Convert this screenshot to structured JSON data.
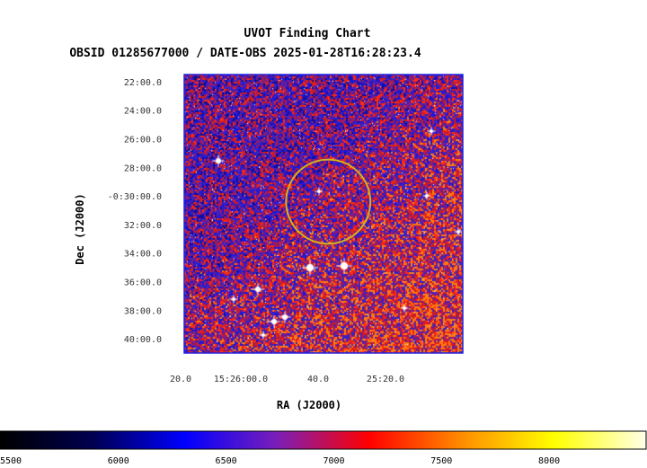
{
  "chart_data": {
    "type": "heatmap",
    "title": "UVOT Finding Chart",
    "subtitle": "OBSID 01285677000 / DATE-OBS 2025-01-28T16:28:23.4",
    "xlabel": "RA (J2000)",
    "ylabel": "Dec (J2000)",
    "grid": false,
    "xtick_labels": [
      "20.0",
      "15:26:00.0",
      "40.0",
      "25:20.0"
    ],
    "ytick_labels": [
      "22:00.0",
      "24:00.0",
      "26:00.0",
      "28:00.0",
      "-0:30:00.0",
      "32:00.0",
      "34:00.0",
      "36:00.0",
      "38:00.0",
      "40:00.0"
    ],
    "dec_ticks_arcmin": [
      -22,
      -24,
      -26,
      -28,
      -30,
      -32,
      -34,
      -36,
      -38,
      -40
    ],
    "ra_ticks_sec": [
      20,
      0,
      -20,
      -40
    ],
    "dec_range_arcmin": [
      -21.5,
      -41.0
    ],
    "ra_range_sec": [
      27,
      -32
    ],
    "target_circle": {
      "ra_offset_sec": -3.5,
      "dec_arcmin": -30.4,
      "radius_arcmin": 2.95,
      "color": "#d4b21d"
    },
    "colorbar": {
      "tick_labels": [
        "5500",
        "6000",
        "6500",
        "7000",
        "7500",
        "8000"
      ],
      "ticks": [
        5500,
        6000,
        6500,
        7000,
        7500,
        8000
      ],
      "range": [
        5450,
        8450
      ],
      "colormap": [
        "#000000",
        "#000050",
        "#0000ff",
        "#7a1fb8",
        "#ff0000",
        "#ff8c00",
        "#ffff00",
        "#ffffe8"
      ]
    },
    "image_palette": {
      "background": "#201ab3",
      "noise": [
        "#0d0d9c",
        "#1a15d8",
        "#3420c8",
        "#5020b0",
        "#a01860",
        "#d01c20",
        "#ff2a10",
        "#ff7a10"
      ],
      "star": "#ffffff",
      "field_border": "#2020e0"
    }
  }
}
